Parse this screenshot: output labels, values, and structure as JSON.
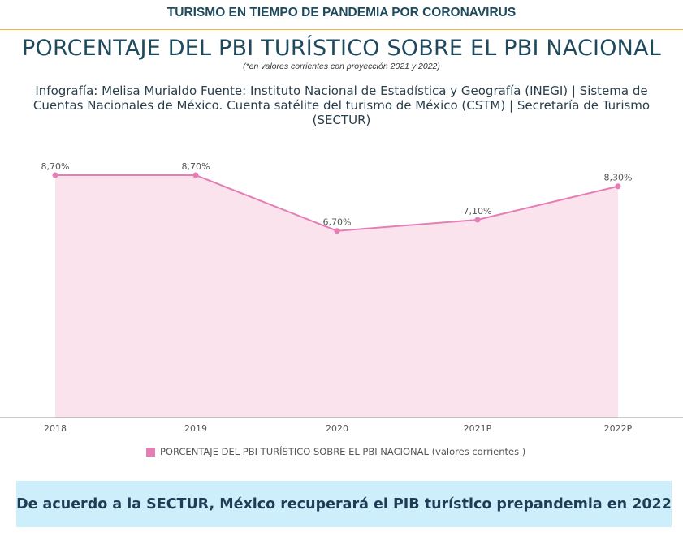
{
  "header": {
    "top_title": "TURISMO EN TIEMPO DE PANDEMIA POR CORONAVIRUS",
    "accent_color": "#f0b840"
  },
  "chart_data": {
    "type": "area",
    "title": "PORCENTAJE DEL PBI TURÍSTICO SOBRE EL PBI NACIONAL",
    "subtitle": "(*en valores corrientes con proyección 2021 y 2022)",
    "source": "Infografía: Melisa Murialdo Fuente: Instituto Nacional de Estadística y Geografía (INEGI) | Sistema de Cuentas Nacionales de México. Cuenta satélite del turismo de México (CSTM) | Secretaría de Turismo (SECTUR)",
    "categories": [
      "2018",
      "2019",
      "2020",
      "2021P",
      "2022P"
    ],
    "series": [
      {
        "name": "PORCENTAJE DEL PBI TURÍSTICO SOBRE EL PBI NACIONAL (valores corrientes )",
        "values": [
          8.7,
          8.7,
          6.7,
          7.1,
          8.3
        ],
        "labels": [
          "8,70%",
          "8,70%",
          "6,70%",
          "7,10%",
          "8,30%"
        ],
        "line_color": "#e57eb5",
        "fill_color": "#fbe3ee"
      }
    ],
    "ylim": [
      0,
      8.7
    ],
    "grid": false,
    "legend_position": "bottom-left"
  },
  "banner": {
    "text": "De acuerdo a la SECTUR, México recuperará el PIB turístico prepandemia en 2022",
    "background": "#cdeefb"
  }
}
